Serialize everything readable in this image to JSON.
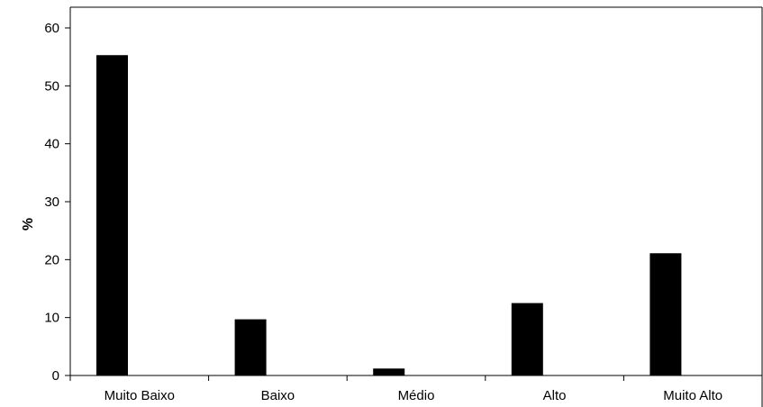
{
  "chart_data": {
    "type": "bar",
    "title": "",
    "xlabel": "",
    "ylabel": "%",
    "categories": [
      "Muito Baixo",
      "Baixo",
      "Médio",
      "Alto",
      "Muito Alto"
    ],
    "values": [
      55.3,
      9.7,
      1.2,
      12.5,
      21.1
    ],
    "ylim": [
      0,
      60
    ],
    "yticks": [
      "0",
      "10",
      "20",
      "30",
      "40",
      "50",
      "60"
    ],
    "grid": false,
    "legend": "none",
    "bar_color": "#000000"
  }
}
